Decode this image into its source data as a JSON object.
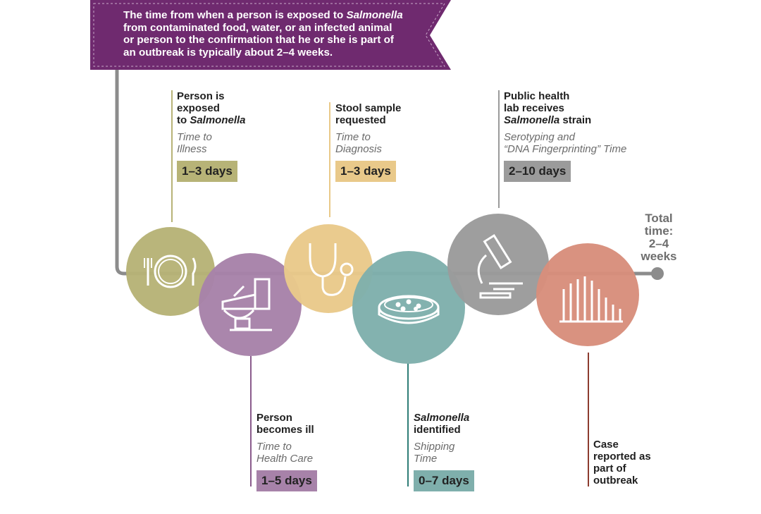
{
  "banner": {
    "line1_pre": "The time from when a person is exposed to ",
    "line1_ital": "Salmonella",
    "line2": "from contaminated food, water, or an infected animal",
    "line3": "or person to the confirmation that he or she is part of",
    "line4": "an outbreak is typically about 2–4 weeks.",
    "color": "#6f2a6f"
  },
  "stages": {
    "exposed": {
      "title_1": "Person is",
      "title_2": "exposed",
      "title_3_pre": "to ",
      "title_3_ital": "Salmonella",
      "sub_1": "Time to",
      "sub_2": "Illness",
      "duration": "1–3 days",
      "color": "#b7b377",
      "icon": "plate-fork-knife-icon"
    },
    "ill": {
      "title_1": "Person",
      "title_2": "becomes ill",
      "sub_1": "Time to",
      "sub_2": "Health Care",
      "duration": "1–5 days",
      "color": "#a782a9",
      "icon": "toilet-icon"
    },
    "stool": {
      "title_1": "Stool sample",
      "title_2": "requested",
      "sub_1": "Time to",
      "sub_2": "Diagnosis",
      "duration": "1–3 days",
      "color": "#e9c98a",
      "icon": "stethoscope-icon"
    },
    "identified": {
      "title_1_ital": "Salmonella",
      "title_2": "identified",
      "sub_1": "Shipping",
      "sub_2": "Time",
      "duration": "0–7 days",
      "color": "#7fafac",
      "icon": "petri-dish-icon"
    },
    "lab": {
      "title_1": "Public health",
      "title_2": "lab receives",
      "title_3_ital": "Salmonella",
      "title_3_post": " strain",
      "sub_1": "Serotyping and",
      "sub_2": "“DNA Fingerprinting” Time",
      "duration": "2–10 days",
      "color": "#9b9b9b",
      "icon": "microscope-icon"
    },
    "reported": {
      "title_1": "Case",
      "title_2": "reported as",
      "title_3": "part of",
      "title_4": "outbreak",
      "color": "#d88e7c",
      "icon": "bar-graph-icon"
    }
  },
  "total": {
    "line1": "Total",
    "line2": "time:",
    "line3": "2–4",
    "line4": "weeks"
  }
}
